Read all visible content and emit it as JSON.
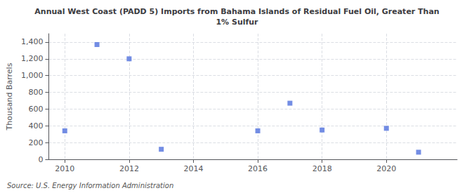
{
  "chart_data": {
    "type": "scatter",
    "title": "Annual West Coast (PADD 5) Imports from Bahama Islands of Residual Fuel Oil, Greater Than\n1% Sulfur",
    "ylabel": "Thousand Barrels",
    "annotation": "Source: U.S. Energy Information Administration",
    "x": [
      2010,
      2011,
      2012,
      2013,
      2016,
      2017,
      2018,
      2020,
      2021
    ],
    "values": [
      340,
      1370,
      1200,
      120,
      340,
      670,
      350,
      370,
      85
    ],
    "marker": "square",
    "xlim": [
      2009.5,
      2022.2
    ],
    "xticks": [
      2010,
      2012,
      2014,
      2016,
      2018,
      2020
    ],
    "ylim": [
      0,
      1500
    ],
    "yticks": [
      0,
      200,
      400,
      600,
      800,
      {
        "value": 1000,
        "label": "1,000"
      },
      {
        "value": 1200,
        "label": "1,200"
      },
      {
        "value": 1400,
        "label": "1,400"
      }
    ],
    "grid": true
  }
}
